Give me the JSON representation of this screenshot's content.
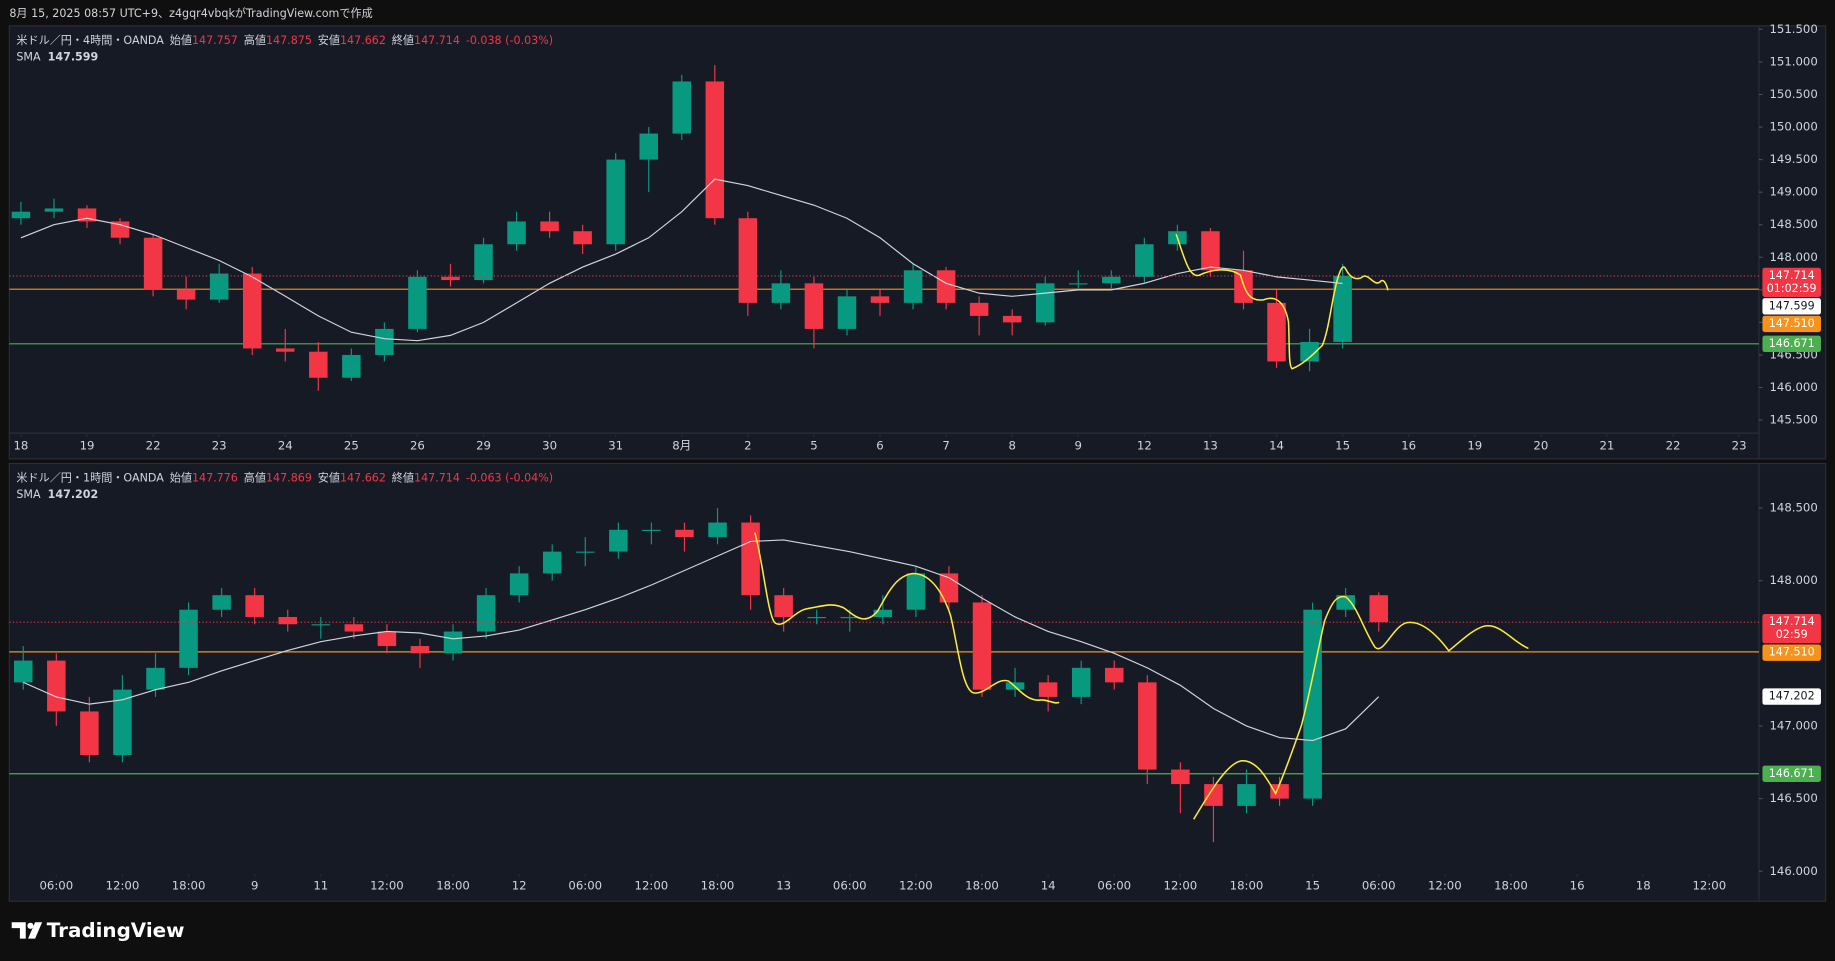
{
  "header": "8月 15, 2025 08:57 UTC+9、z4gqr4vbqkがTradingView.comで作成",
  "footer": {
    "brand": "TradingView"
  },
  "chart_data": [
    {
      "type": "candlestick",
      "symbol": "米ドル／円・4時間・OANDA",
      "legend": {
        "open_label": "始値",
        "open": 147.757,
        "high_label": "高値",
        "high": 147.875,
        "low_label": "安値",
        "low": 147.662,
        "close_label": "終値",
        "close": 147.714,
        "change": "-0.038 (-0.03%)"
      },
      "up_color": "#089981",
      "down_color": "#f23645",
      "countdown": "01:02:59",
      "candles": [
        [
          148.6,
          148.85,
          148.5,
          148.7
        ],
        [
          148.7,
          148.9,
          148.6,
          148.75
        ],
        [
          148.75,
          148.8,
          148.45,
          148.55
        ],
        [
          148.55,
          148.6,
          148.2,
          148.3
        ],
        [
          148.3,
          148.35,
          147.4,
          147.5
        ],
        [
          147.5,
          147.7,
          147.2,
          147.35
        ],
        [
          147.35,
          147.9,
          147.3,
          147.75
        ],
        [
          147.75,
          147.85,
          146.5,
          146.6
        ],
        [
          146.6,
          146.9,
          146.4,
          146.55
        ],
        [
          146.55,
          146.7,
          145.95,
          146.15
        ],
        [
          146.15,
          146.6,
          146.1,
          146.5
        ],
        [
          146.5,
          147.0,
          146.4,
          146.9
        ],
        [
          146.9,
          147.8,
          146.85,
          147.7
        ],
        [
          147.7,
          147.9,
          147.55,
          147.65
        ],
        [
          147.65,
          148.3,
          147.6,
          148.2
        ],
        [
          148.2,
          148.7,
          148.1,
          148.55
        ],
        [
          148.55,
          148.7,
          148.3,
          148.4
        ],
        [
          148.4,
          148.5,
          148.05,
          148.2
        ],
        [
          148.2,
          149.6,
          148.1,
          149.5
        ],
        [
          149.5,
          150.0,
          149.0,
          149.9
        ],
        [
          149.9,
          150.8,
          149.8,
          150.7
        ],
        [
          150.7,
          150.95,
          148.5,
          148.6
        ],
        [
          148.6,
          148.7,
          147.1,
          147.3
        ],
        [
          147.3,
          147.8,
          147.2,
          147.6
        ],
        [
          147.6,
          147.7,
          146.6,
          146.9
        ],
        [
          146.9,
          147.5,
          146.8,
          147.4
        ],
        [
          147.4,
          147.5,
          147.1,
          147.3
        ],
        [
          147.3,
          147.9,
          147.2,
          147.8
        ],
        [
          147.8,
          147.85,
          147.2,
          147.3
        ],
        [
          147.3,
          147.4,
          146.8,
          147.1
        ],
        [
          147.1,
          147.2,
          146.8,
          147.0
        ],
        [
          147.0,
          147.7,
          146.95,
          147.6
        ],
        [
          147.6,
          147.8,
          147.5,
          147.6
        ],
        [
          147.6,
          147.8,
          147.5,
          147.7
        ],
        [
          147.7,
          148.3,
          147.6,
          148.2
        ],
        [
          148.2,
          148.5,
          148.1,
          148.4
        ],
        [
          148.4,
          148.45,
          147.7,
          147.8
        ],
        [
          147.8,
          148.1,
          147.2,
          147.3
        ],
        [
          147.3,
          147.5,
          146.3,
          146.4
        ],
        [
          146.4,
          146.9,
          146.25,
          146.7
        ],
        [
          146.7,
          147.9,
          146.6,
          147.714
        ]
      ],
      "sma": {
        "name": "SMA",
        "color": "#d1d4dc",
        "values": [
          148.3,
          148.5,
          148.6,
          148.5,
          148.35,
          148.15,
          147.95,
          147.7,
          147.4,
          147.1,
          146.85,
          146.75,
          146.72,
          146.8,
          147.0,
          147.3,
          147.6,
          147.85,
          148.05,
          148.3,
          148.7,
          149.2,
          149.1,
          148.95,
          148.8,
          148.6,
          148.3,
          147.9,
          147.6,
          147.45,
          147.4,
          147.45,
          147.5,
          147.5,
          147.6,
          147.75,
          147.85,
          147.8,
          147.7,
          147.65,
          147.599
        ]
      },
      "price_lines": [
        {
          "value": 147.51,
          "label": "147.510",
          "color": "#f7931a"
        },
        {
          "value": 146.671,
          "color": "#4caf50"
        }
      ],
      "ylim": [
        145.3,
        151.5
      ],
      "yticks": [
        {
          "value": 145.5,
          "label": "145.500"
        },
        {
          "value": 146,
          "label": "146.000"
        },
        {
          "value": 146.5,
          "label": "146.500"
        },
        {
          "value": 147,
          "label": "147.000"
        },
        {
          "value": 147.5,
          "label": "147.500"
        },
        {
          "value": 148,
          "label": "148.000"
        },
        {
          "value": 148.5,
          "label": "148.500"
        },
        {
          "value": 149,
          "label": "149.000"
        },
        {
          "value": 149.5,
          "label": "149.500"
        },
        {
          "value": 150,
          "label": "150.000"
        },
        {
          "value": 150.5,
          "label": "150.500"
        },
        {
          "value": 151,
          "label": "151.000"
        },
        {
          "value": 151.5,
          "label": "151.500"
        }
      ],
      "xlim": [
        -0.35,
        52.6
      ],
      "xticks": [
        {
          "value": 0,
          "label": "18"
        },
        {
          "value": 2,
          "label": "19"
        },
        {
          "value": 4,
          "label": "22"
        },
        {
          "value": 6,
          "label": "23"
        },
        {
          "value": 8,
          "label": "24"
        },
        {
          "value": 10,
          "label": "25"
        },
        {
          "value": 12,
          "label": "26"
        },
        {
          "value": 14,
          "label": "29"
        },
        {
          "value": 16,
          "label": "30"
        },
        {
          "value": 18,
          "label": "31"
        },
        {
          "value": 20,
          "label": "8月"
        },
        {
          "value": 22,
          "label": "2"
        },
        {
          "value": 24,
          "label": "5"
        },
        {
          "value": 26,
          "label": "6"
        },
        {
          "value": 28,
          "label": "7"
        },
        {
          "value": 30,
          "label": "8"
        },
        {
          "value": 32,
          "label": "9"
        },
        {
          "value": 34,
          "label": "12"
        },
        {
          "value": 36,
          "label": "13"
        },
        {
          "value": 38,
          "label": "14"
        },
        {
          "value": 40,
          "label": "15"
        },
        {
          "value": 42,
          "label": "16"
        },
        {
          "value": 44,
          "label": "19"
        },
        {
          "value": 46,
          "label": "20"
        },
        {
          "value": 48,
          "label": "21"
        },
        {
          "value": 50,
          "label": "22"
        },
        {
          "value": 52,
          "label": "23"
        }
      ]
    },
    {
      "type": "candlestick",
      "symbol": "米ドル／円・1時間・OANDA",
      "legend": {
        "open_label": "始値",
        "open": 147.776,
        "high_label": "高値",
        "high": 147.869,
        "low_label": "安値",
        "low": 147.662,
        "close_label": "終値",
        "close": 147.714,
        "change": "-0.063 (-0.04%)"
      },
      "up_color": "#089981",
      "down_color": "#f23645",
      "countdown": "02:59",
      "candles": [
        [
          147.3,
          147.55,
          147.25,
          147.45
        ],
        [
          147.45,
          147.5,
          147.0,
          147.1
        ],
        [
          147.1,
          147.2,
          146.75,
          146.8
        ],
        [
          146.8,
          147.35,
          146.75,
          147.25
        ],
        [
          147.25,
          147.5,
          147.2,
          147.4
        ],
        [
          147.4,
          147.85,
          147.35,
          147.8
        ],
        [
          147.8,
          147.95,
          147.75,
          147.9
        ],
        [
          147.9,
          147.95,
          147.7,
          147.75
        ],
        [
          147.75,
          147.8,
          147.65,
          147.7
        ],
        [
          147.7,
          147.75,
          147.6,
          147.7
        ],
        [
          147.7,
          147.75,
          147.6,
          147.65
        ],
        [
          147.65,
          147.7,
          147.5,
          147.55
        ],
        [
          147.55,
          147.6,
          147.4,
          147.5
        ],
        [
          147.5,
          147.7,
          147.45,
          147.65
        ],
        [
          147.65,
          147.95,
          147.6,
          147.9
        ],
        [
          147.9,
          148.1,
          147.85,
          148.05
        ],
        [
          148.05,
          148.25,
          148.0,
          148.2
        ],
        [
          148.2,
          148.3,
          148.1,
          148.2
        ],
        [
          148.2,
          148.4,
          148.15,
          148.35
        ],
        [
          148.35,
          148.4,
          148.25,
          148.35
        ],
        [
          148.35,
          148.4,
          148.2,
          148.3
        ],
        [
          148.3,
          148.5,
          148.25,
          148.4
        ],
        [
          148.4,
          148.45,
          147.8,
          147.9
        ],
        [
          147.9,
          147.95,
          147.65,
          147.75
        ],
        [
          147.75,
          147.8,
          147.7,
          147.75
        ],
        [
          147.75,
          147.8,
          147.65,
          147.75
        ],
        [
          147.75,
          147.9,
          147.7,
          147.8
        ],
        [
          147.8,
          148.1,
          147.75,
          148.05
        ],
        [
          148.05,
          148.1,
          147.8,
          147.85
        ],
        [
          147.85,
          147.9,
          147.2,
          147.25
        ],
        [
          147.25,
          147.4,
          147.2,
          147.3
        ],
        [
          147.3,
          147.35,
          147.1,
          147.2
        ],
        [
          147.2,
          147.45,
          147.15,
          147.4
        ],
        [
          147.4,
          147.45,
          147.25,
          147.3
        ],
        [
          147.3,
          147.35,
          146.6,
          146.7
        ],
        [
          146.7,
          146.75,
          146.4,
          146.6
        ],
        [
          146.6,
          146.65,
          146.2,
          146.45
        ],
        [
          146.45,
          146.7,
          146.4,
          146.6
        ],
        [
          146.6,
          146.65,
          146.45,
          146.5
        ],
        [
          146.5,
          147.85,
          146.45,
          147.8
        ],
        [
          147.8,
          147.95,
          147.75,
          147.9
        ],
        [
          147.9,
          147.92,
          147.65,
          147.714
        ]
      ],
      "sma": {
        "name": "SMA",
        "color": "#d1d4dc",
        "values": [
          147.3,
          147.2,
          147.15,
          147.18,
          147.25,
          147.3,
          147.38,
          147.45,
          147.52,
          147.58,
          147.62,
          147.65,
          147.64,
          147.6,
          147.62,
          147.66,
          147.73,
          147.8,
          147.88,
          147.97,
          148.07,
          148.17,
          148.27,
          148.28,
          148.24,
          148.2,
          148.15,
          148.1,
          148.02,
          147.88,
          147.75,
          147.65,
          147.58,
          147.5,
          147.4,
          147.28,
          147.12,
          147.0,
          146.92,
          146.9,
          146.98,
          147.202
        ]
      },
      "price_lines": [
        {
          "value": 147.51,
          "label": "147.510",
          "color": "#f7931a"
        },
        {
          "value": 146.671,
          "color": "#4caf50"
        }
      ],
      "ylim": [
        145.81,
        148.79
      ],
      "yticks": [
        {
          "value": 146,
          "label": "146.000"
        },
        {
          "value": 146.5,
          "label": "146.500"
        },
        {
          "value": 147,
          "label": "147.000"
        },
        {
          "value": 148,
          "label": "148.000"
        },
        {
          "value": 148.5,
          "label": "148.500"
        }
      ],
      "xlim": [
        -0.42,
        52.5
      ],
      "xticks": [
        {
          "value": 1,
          "label": "06:00"
        },
        {
          "value": 3,
          "label": "12:00"
        },
        {
          "value": 5,
          "label": "18:00"
        },
        {
          "value": 7,
          "label": "9"
        },
        {
          "value": 9,
          "label": "11"
        },
        {
          "value": 11,
          "label": "12:00"
        },
        {
          "value": 13,
          "label": "18:00"
        },
        {
          "value": 15,
          "label": "12"
        },
        {
          "value": 17,
          "label": "06:00"
        },
        {
          "value": 19,
          "label": "12:00"
        },
        {
          "value": 21,
          "label": "18:00"
        },
        {
          "value": 23,
          "label": "13"
        },
        {
          "value": 25,
          "label": "06:00"
        },
        {
          "value": 27,
          "label": "12:00"
        },
        {
          "value": 29,
          "label": "18:00"
        },
        {
          "value": 31,
          "label": "14"
        },
        {
          "value": 33,
          "label": "06:00"
        },
        {
          "value": 35,
          "label": "12:00"
        },
        {
          "value": 37,
          "label": "18:00"
        },
        {
          "value": 39,
          "label": "15"
        },
        {
          "value": 41,
          "label": "06:00"
        },
        {
          "value": 43,
          "label": "12:00"
        },
        {
          "value": 45,
          "label": "18:00"
        },
        {
          "value": 47,
          "label": "16"
        },
        {
          "value": 49,
          "label": "18"
        },
        {
          "value": 51,
          "label": "12:00"
        }
      ]
    }
  ]
}
